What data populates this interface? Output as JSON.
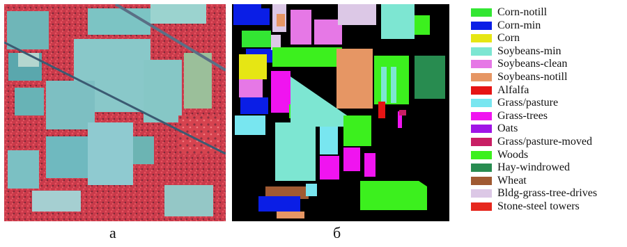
{
  "captions": {
    "left": "а",
    "right": "б"
  },
  "legend": {
    "items": [
      {
        "label": "Corn-notill",
        "color": "#33e633"
      },
      {
        "label": "Corn-min",
        "color": "#0a1ee6"
      },
      {
        "label": "Corn",
        "color": "#e6e614"
      },
      {
        "label": "Soybeans-min",
        "color": "#7de6d2"
      },
      {
        "label": "Soybeans-clean",
        "color": "#e678e6"
      },
      {
        "label": "Soybeans-notill",
        "color": "#e69664"
      },
      {
        "label": "Alfalfa",
        "color": "#e61414"
      },
      {
        "label": "Grass/pasture",
        "color": "#78e6f0"
      },
      {
        "label": "Grass-trees",
        "color": "#f014f0"
      },
      {
        "label": "Oats",
        "color": "#a014e6"
      },
      {
        "label": "Grass/pasture-moved",
        "color": "#c81e64"
      },
      {
        "label": "Woods",
        "color": "#3cf01e"
      },
      {
        "label": "Hay-windrowed",
        "color": "#288c50"
      },
      {
        "label": "Wheat",
        "color": "#a05a32"
      },
      {
        "label": "Bldg-grass-tree-drives",
        "color": "#dcc8e6"
      },
      {
        "label": "Stone-steel towers",
        "color": "#e6281e"
      }
    ]
  }
}
